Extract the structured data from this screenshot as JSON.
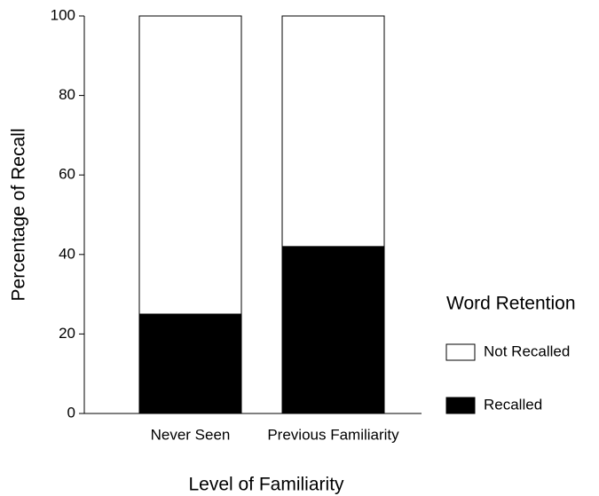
{
  "chart_data": {
    "type": "stacked_bar",
    "x_label": "Level of Familiarity",
    "y_label": "Percentage of Recall",
    "categories": [
      "Never Seen",
      "Previous Familiarity"
    ],
    "series": [
      {
        "name": "Recalled",
        "color": "#000000",
        "values": [
          25,
          42
        ]
      },
      {
        "name": "Not Recalled",
        "color": "#ffffff",
        "values": [
          75,
          58
        ]
      }
    ],
    "ylim": [
      0,
      100
    ],
    "yticks": [
      0,
      20,
      40,
      60,
      80,
      100
    ],
    "legend": {
      "title": "Word Retention",
      "position": "right"
    }
  }
}
